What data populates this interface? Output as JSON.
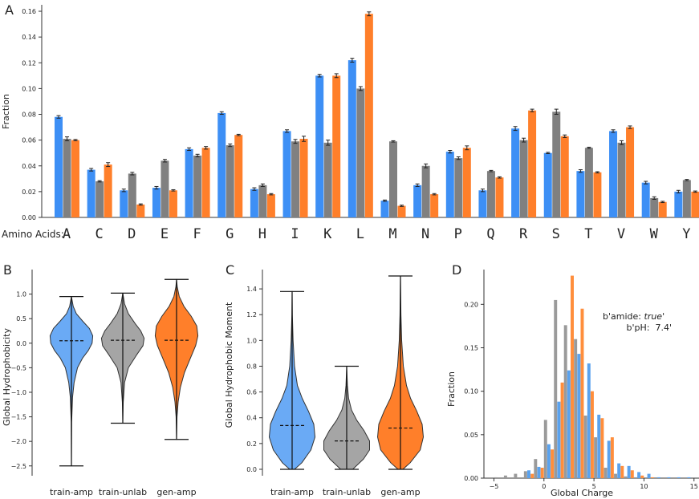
{
  "colors": {
    "train_amp": "#3d8ff5",
    "train_unlab": "#808080",
    "gen_amp": "#ff7f2a",
    "violin_train_amp": "#6aaaf5",
    "violin_train_unlab": "#a5a5a5",
    "violin_gen_amp": "#ff7f2a",
    "hist_train_amp": "#5aa2ee",
    "hist_train_unlab": "#9a9a9a",
    "hist_gen_amp": "#ff8e3c"
  },
  "panels": {
    "A": {
      "letter": "A",
      "row_label": "Amino Acids:"
    },
    "B": {
      "letter": "B"
    },
    "C": {
      "letter": "C"
    },
    "D": {
      "letter": "D",
      "annotation_line1_prefix": "b'amide: ",
      "annotation_line1_value": "true",
      "annotation_line1_suffix": "'",
      "annotation_line2": "b'pH:  7.4'"
    }
  },
  "chart_data": [
    {
      "id": "A",
      "type": "bar",
      "ylabel": "Fraction",
      "ylim": [
        0,
        0.165
      ],
      "yticks": [
        0.0,
        0.02,
        0.04,
        0.06,
        0.08,
        0.1,
        0.12,
        0.14,
        0.16
      ],
      "ytick_labels": [
        "0.00",
        "0.02",
        "0.04",
        "0.06",
        "0.08",
        "0.10",
        "0.12",
        "0.14",
        "0.16"
      ],
      "categories": [
        "A",
        "C",
        "D",
        "E",
        "F",
        "G",
        "H",
        "I",
        "K",
        "L",
        "M",
        "N",
        "P",
        "Q",
        "R",
        "S",
        "T",
        "V",
        "W",
        "Y"
      ],
      "series": [
        {
          "key": "train_amp",
          "values": [
            0.078,
            0.037,
            0.021,
            0.023,
            0.053,
            0.081,
            0.022,
            0.067,
            0.11,
            0.122,
            0.013,
            0.025,
            0.051,
            0.021,
            0.069,
            0.05,
            0.036,
            0.067,
            0.027,
            0.02
          ],
          "errors": [
            0.001,
            0.001,
            0.001,
            0.001,
            0.001,
            0.001,
            0.001,
            0.001,
            0.001,
            0.0015,
            0.0005,
            0.001,
            0.001,
            0.001,
            0.0015,
            0.0005,
            0.001,
            0.001,
            0.001,
            0.001
          ]
        },
        {
          "key": "train_unlab",
          "values": [
            0.061,
            0.028,
            0.034,
            0.044,
            0.048,
            0.056,
            0.025,
            0.059,
            0.058,
            0.1,
            0.059,
            0.04,
            0.046,
            0.036,
            0.06,
            0.082,
            0.054,
            0.058,
            0.015,
            0.029
          ],
          "errors": [
            0.0015,
            0.0005,
            0.001,
            0.001,
            0.001,
            0.001,
            0.001,
            0.0015,
            0.002,
            0.0015,
            0.0005,
            0.0015,
            0.001,
            0.0005,
            0.0015,
            0.002,
            0.0005,
            0.0015,
            0.001,
            0.0005
          ]
        },
        {
          "key": "gen_amp",
          "values": [
            0.06,
            0.041,
            0.01,
            0.021,
            0.054,
            0.064,
            0.018,
            0.061,
            0.11,
            0.158,
            0.009,
            0.018,
            0.054,
            0.031,
            0.083,
            0.063,
            0.035,
            0.07,
            0.012,
            0.02
          ],
          "errors": [
            0.0005,
            0.0015,
            0.0005,
            0.0005,
            0.001,
            0.0005,
            0.0005,
            0.002,
            0.0015,
            0.0015,
            0.0005,
            0.0005,
            0.0015,
            0.0005,
            0.001,
            0.001,
            0.0005,
            0.001,
            0.0005,
            0.0005
          ]
        }
      ]
    },
    {
      "id": "B",
      "type": "violin",
      "ylabel": "Global Hydrophobicity",
      "ylim": [
        -2.7,
        1.5
      ],
      "yticks": [
        -2.5,
        -2.0,
        -1.5,
        -1.0,
        -0.5,
        0.0,
        0.5,
        1.0
      ],
      "ytick_labels": [
        "−2.5",
        "−2.0",
        "−1.5",
        "−1.0",
        "−0.5",
        "0.0",
        "0.5",
        "1.0"
      ],
      "categories": [
        "train-amp",
        "train-unlab",
        "gen-amp"
      ],
      "violins": [
        {
          "key": "train_amp",
          "min": -2.5,
          "max": 0.95,
          "mean": 0.05,
          "profile": [
            [
              -2.5,
              0
            ],
            [
              -1.6,
              0.01
            ],
            [
              -1.1,
              0.05
            ],
            [
              -0.8,
              0.12
            ],
            [
              -0.5,
              0.27
            ],
            [
              -0.3,
              0.5
            ],
            [
              -0.15,
              0.75
            ],
            [
              0.0,
              0.92
            ],
            [
              0.15,
              0.95
            ],
            [
              0.3,
              0.8
            ],
            [
              0.45,
              0.5
            ],
            [
              0.6,
              0.22
            ],
            [
              0.75,
              0.08
            ],
            [
              0.95,
              0
            ]
          ]
        },
        {
          "key": "train_unlab",
          "min": -1.63,
          "max": 1.02,
          "mean": 0.06,
          "profile": [
            [
              -1.63,
              0
            ],
            [
              -1.2,
              0.02
            ],
            [
              -0.8,
              0.08
            ],
            [
              -0.5,
              0.25
            ],
            [
              -0.25,
              0.6
            ],
            [
              -0.05,
              0.9
            ],
            [
              0.1,
              0.95
            ],
            [
              0.25,
              0.8
            ],
            [
              0.4,
              0.55
            ],
            [
              0.6,
              0.25
            ],
            [
              0.8,
              0.08
            ],
            [
              1.02,
              0
            ]
          ]
        },
        {
          "key": "gen_amp",
          "min": -1.96,
          "max": 1.3,
          "mean": 0.06,
          "profile": [
            [
              -1.96,
              0
            ],
            [
              -1.5,
              0.02
            ],
            [
              -1.2,
              0.07
            ],
            [
              -0.9,
              0.17
            ],
            [
              -0.6,
              0.35
            ],
            [
              -0.3,
              0.62
            ],
            [
              -0.05,
              0.85
            ],
            [
              0.15,
              0.95
            ],
            [
              0.35,
              0.9
            ],
            [
              0.55,
              0.65
            ],
            [
              0.75,
              0.33
            ],
            [
              0.95,
              0.12
            ],
            [
              1.15,
              0.03
            ],
            [
              1.3,
              0
            ]
          ]
        }
      ]
    },
    {
      "id": "C",
      "type": "violin",
      "ylabel": "Global Hydrophobic Moment",
      "ylim": [
        -0.05,
        1.55
      ],
      "yticks": [
        0.0,
        0.2,
        0.4,
        0.6,
        0.8,
        1.0,
        1.2,
        1.4
      ],
      "ytick_labels": [
        "0.0",
        "0.2",
        "0.4",
        "0.6",
        "0.8",
        "1.0",
        "1.2",
        "1.4"
      ],
      "categories": [
        "train-amp",
        "train-unlab",
        "gen-amp"
      ],
      "violins": [
        {
          "key": "train_amp",
          "min": 0.0,
          "max": 1.38,
          "mean": 0.34,
          "profile": [
            [
              0.0,
              0.1
            ],
            [
              0.05,
              0.4
            ],
            [
              0.15,
              0.78
            ],
            [
              0.25,
              0.95
            ],
            [
              0.35,
              0.9
            ],
            [
              0.45,
              0.68
            ],
            [
              0.55,
              0.42
            ],
            [
              0.65,
              0.22
            ],
            [
              0.8,
              0.1
            ],
            [
              1.0,
              0.04
            ],
            [
              1.2,
              0.01
            ],
            [
              1.38,
              0
            ]
          ]
        },
        {
          "key": "train_unlab",
          "min": 0.0,
          "max": 0.8,
          "mean": 0.22,
          "profile": [
            [
              0.0,
              0.25
            ],
            [
              0.08,
              0.7
            ],
            [
              0.15,
              0.95
            ],
            [
              0.22,
              0.95
            ],
            [
              0.3,
              0.72
            ],
            [
              0.38,
              0.42
            ],
            [
              0.46,
              0.2
            ],
            [
              0.55,
              0.08
            ],
            [
              0.65,
              0.03
            ],
            [
              0.8,
              0
            ]
          ]
        },
        {
          "key": "gen_amp",
          "min": 0.0,
          "max": 1.5,
          "mean": 0.32,
          "profile": [
            [
              0.0,
              0.1
            ],
            [
              0.05,
              0.4
            ],
            [
              0.15,
              0.82
            ],
            [
              0.25,
              0.95
            ],
            [
              0.35,
              0.9
            ],
            [
              0.45,
              0.68
            ],
            [
              0.55,
              0.42
            ],
            [
              0.65,
              0.25
            ],
            [
              0.8,
              0.12
            ],
            [
              1.0,
              0.05
            ],
            [
              1.2,
              0.02
            ],
            [
              1.5,
              0
            ]
          ]
        }
      ]
    },
    {
      "id": "D",
      "type": "histogram",
      "xlabel": "Global Charge",
      "ylabel": "Fraction",
      "xlim": [
        -6,
        15.5
      ],
      "ylim": [
        0,
        0.24
      ],
      "xticks": [
        -5,
        0,
        5,
        10,
        15
      ],
      "xtick_labels": [
        "−5",
        "0",
        "5",
        "10",
        "15"
      ],
      "yticks": [
        0.0,
        0.05,
        0.1,
        0.15,
        0.2
      ],
      "ytick_labels": [
        "0.00",
        "0.05",
        "0.10",
        "0.15",
        "0.20"
      ],
      "bins_left": [
        -5,
        -4,
        -3,
        -2,
        -1,
        0,
        1,
        2,
        3,
        4,
        5,
        6,
        7,
        8,
        9,
        10,
        11,
        12,
        13,
        14
      ],
      "series": [
        {
          "key": "hist_train_unlab",
          "values": [
            0.001,
            0.003,
            0.005,
            0.008,
            0.022,
            0.067,
            0.205,
            0.176,
            0.16,
            0.072,
            0.047,
            0.012,
            0.005,
            0.002,
            0.001,
            0.0,
            0.0,
            0.0,
            0.0,
            0.0
          ]
        },
        {
          "key": "hist_train_amp",
          "values": [
            0.0,
            0.0,
            0.0,
            0.009,
            0.013,
            0.039,
            0.088,
            0.124,
            0.143,
            0.132,
            0.073,
            0.043,
            0.017,
            0.014,
            0.007,
            0.005,
            0.001,
            0.001,
            0.001,
            0.001
          ]
        },
        {
          "key": "hist_gen_amp",
          "values": [
            0.0,
            0.0,
            0.0,
            0.005,
            0.012,
            0.033,
            0.11,
            0.233,
            0.195,
            0.1,
            0.069,
            0.047,
            0.014,
            0.009,
            0.003,
            0.001,
            0.0,
            0.0,
            0.0,
            0.0
          ]
        }
      ]
    }
  ]
}
